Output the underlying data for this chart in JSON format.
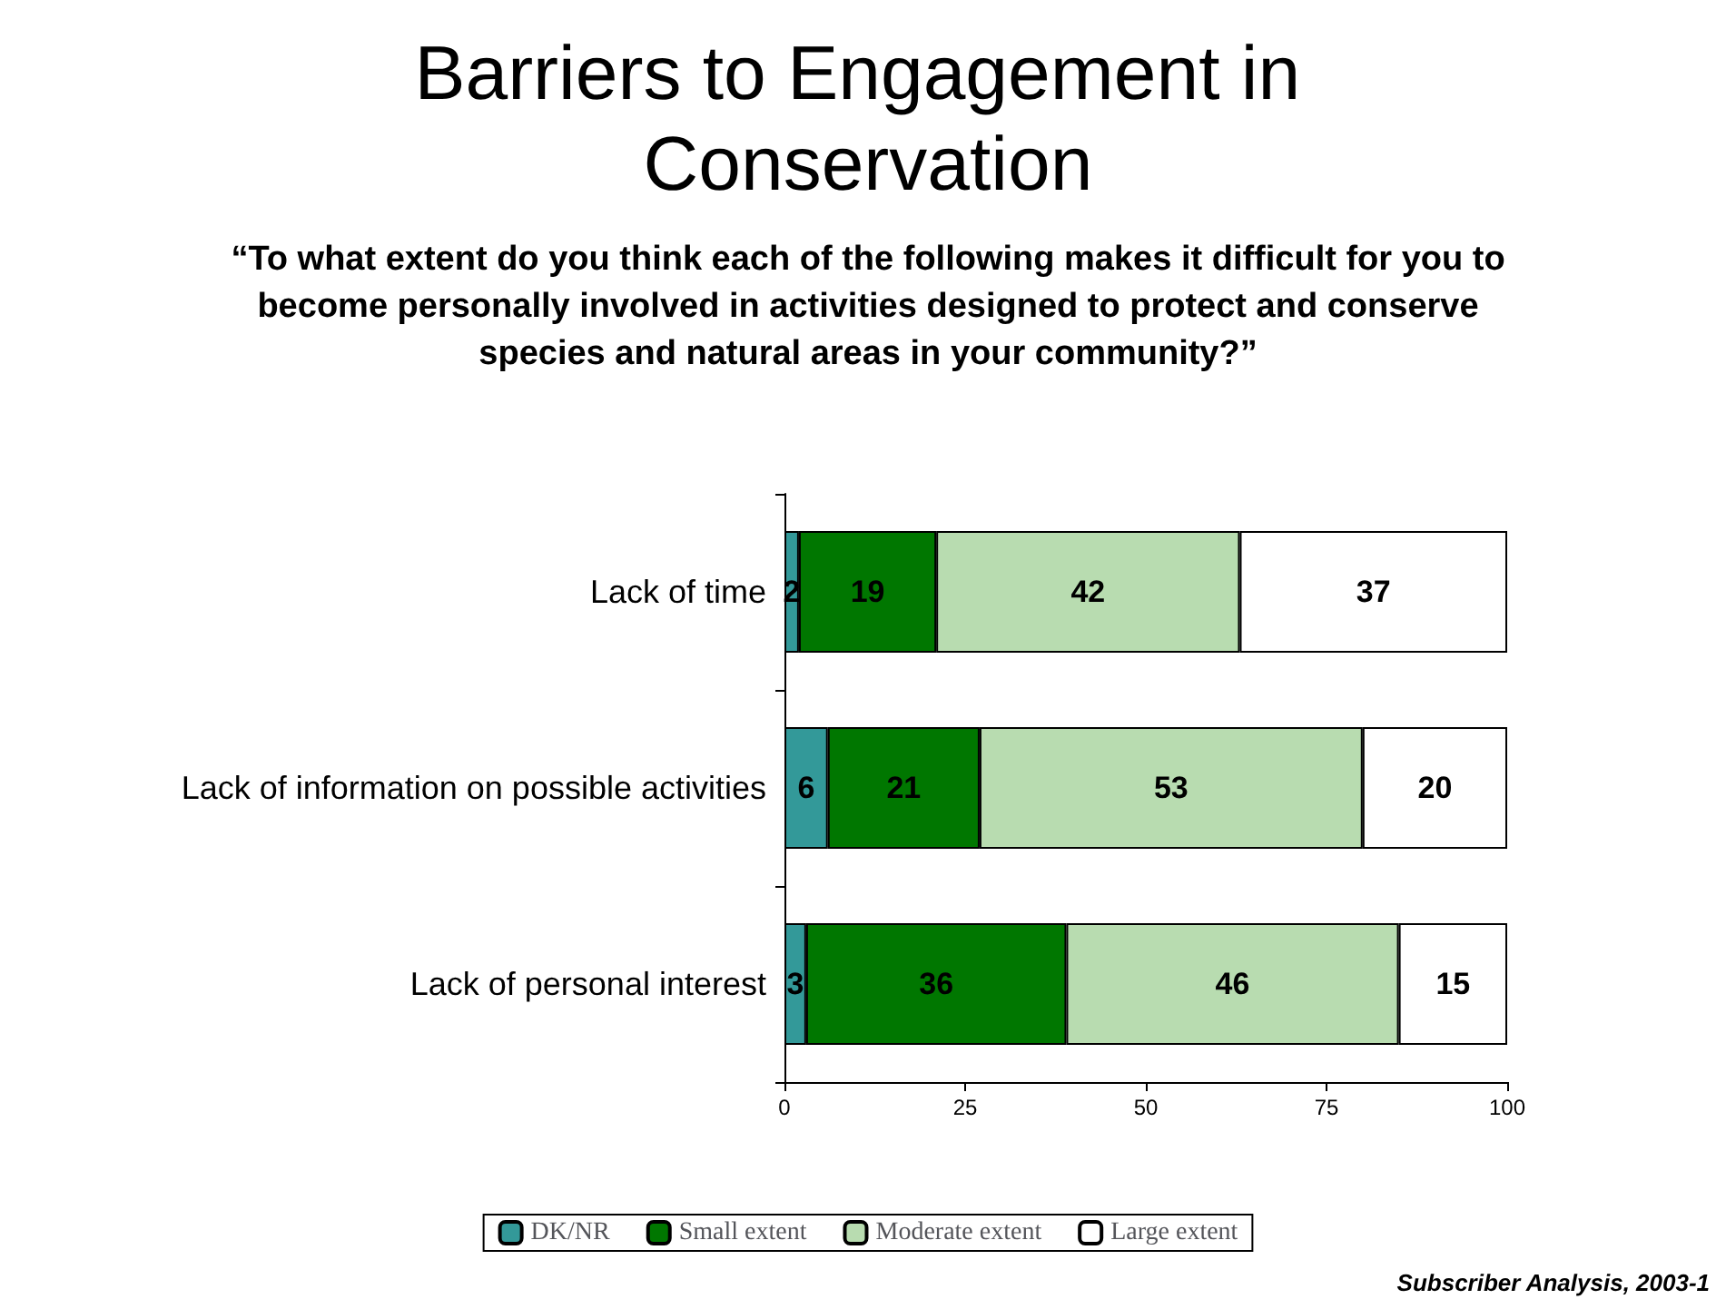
{
  "chart_data": {
    "type": "bar",
    "orientation": "horizontal",
    "stacked": true,
    "title": "Barriers to Engagement in Conservation",
    "subtitle": "“To what extent do you think each of the following makes it difficult for you to become personally involved in activities designed to protect and conserve species and natural areas in your community?”",
    "categories": [
      "Lack of time",
      "Lack of information on possible activities",
      "Lack of personal interest"
    ],
    "series": [
      {
        "name": "DK/NR",
        "color": "#339999",
        "values": [
          2,
          6,
          3
        ]
      },
      {
        "name": "Small extent",
        "color": "#007700",
        "values": [
          19,
          21,
          36
        ]
      },
      {
        "name": "Moderate extent",
        "color": "#b8dcb0",
        "values": [
          42,
          53,
          46
        ]
      },
      {
        "name": "Large extent",
        "color": "#ffffff",
        "values": [
          37,
          20,
          15
        ]
      }
    ],
    "xlim": [
      0,
      100
    ],
    "xticks": [
      0,
      25,
      50,
      75,
      100
    ],
    "grid": false,
    "legend": "bottom",
    "data_labels": true,
    "annotations": [
      "Subscriber Analysis, 2003-1"
    ]
  }
}
